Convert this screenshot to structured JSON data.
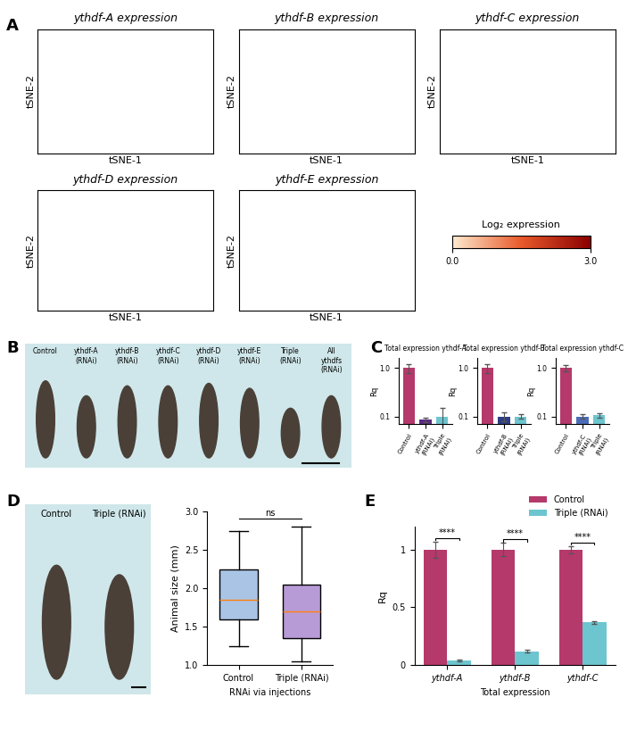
{
  "chart_data": [
    {
      "panel": "A",
      "type": "scatter",
      "title": "ythdf-A expression",
      "x_label": "tSNE-1",
      "y_label": "tSNE-2",
      "tick_labels": false
    },
    {
      "panel": "A",
      "type": "scatter",
      "title": "ythdf-B expression",
      "x_label": "tSNE-1",
      "y_label": "tSNE-2",
      "tick_labels": false
    },
    {
      "panel": "A",
      "type": "scatter",
      "title": "ythdf-C expression",
      "x_label": "tSNE-1",
      "y_label": "tSNE-2",
      "tick_labels": false
    },
    {
      "panel": "A",
      "type": "scatter",
      "title": "ythdf-D expression",
      "x_label": "tSNE-1",
      "y_label": "tSNE-2",
      "tick_labels": false
    },
    {
      "panel": "A",
      "type": "scatter",
      "title": "ythdf-E expression",
      "x_label": "tSNE-1",
      "y_label": "tSNE-2",
      "tick_labels": false
    },
    {
      "panel": "A",
      "type": "colorbar",
      "title": "Log₂ expression",
      "zlim": [
        0.0,
        3.0
      ],
      "zticks": [
        0.0,
        3.0
      ],
      "colors": [
        "#fdebd0",
        "#e8592a",
        "#8b0000"
      ]
    },
    {
      "panel": "B",
      "type": "image",
      "labels": [
        "Control",
        "ythdf-A\n(RNAi)",
        "ythdf-B\n(RNAi)",
        "ythdf-C\n(RNAi)",
        "ythdf-D\n(RNAi)",
        "ythdf-E\n(RNAi)",
        "Triple\n(RNAi)",
        "All\nythdfs\n(RNAi)"
      ]
    },
    {
      "panel": "C",
      "type": "bar",
      "title": "Total expression ythdf-A",
      "y_label": "Rq",
      "categories": [
        "Control",
        "ythdf-A\n(RNAi)",
        "Triple\n(RNAi)"
      ],
      "values": [
        1.0,
        0.085,
        0.1
      ],
      "errors": [
        0.2,
        0.01,
        0.05
      ],
      "colors": [
        "#b5396b",
        "#5b2c83",
        "#6cc5cf"
      ],
      "log": "y",
      "ylim": [
        0.07,
        1.6
      ],
      "yticks": [
        0.1,
        1.0
      ]
    },
    {
      "panel": "C",
      "type": "bar",
      "title": "Total expression ythdf-B",
      "y_label": "Rq",
      "categories": [
        "Control",
        "ythdf-B\n(RNAi)",
        "Triple\n(RNAi)"
      ],
      "values": [
        1.0,
        0.1,
        0.1
      ],
      "errors": [
        0.2,
        0.02,
        0.01
      ],
      "colors": [
        "#b5396b",
        "#2e3f86",
        "#6cc5cf"
      ],
      "log": "y",
      "ylim": [
        0.07,
        1.6
      ],
      "yticks": [
        0.1,
        1.0
      ]
    },
    {
      "panel": "C",
      "type": "bar",
      "title": "Total expression ythdf-C",
      "y_label": "Rq",
      "categories": [
        "Control",
        "ythdf-C\n(RNAi)",
        "Triple\n(RNAi)"
      ],
      "values": [
        1.0,
        0.1,
        0.105
      ],
      "errors": [
        0.15,
        0.01,
        0.01
      ],
      "colors": [
        "#b5396b",
        "#4b6cb7",
        "#6cc5cf"
      ],
      "log": "y",
      "ylim": [
        0.07,
        1.6
      ],
      "yticks": [
        0.1,
        1.0
      ]
    },
    {
      "panel": "D",
      "type": "image",
      "labels": [
        "Control",
        "Triple (RNAi)"
      ]
    },
    {
      "panel": "D",
      "type": "box",
      "y_label": "Animal size (mm)",
      "x_label": "RNAi via injections",
      "categories": [
        "Control",
        "Triple (RNAi)"
      ],
      "boxes": [
        {
          "min": 1.25,
          "q1": 1.6,
          "median": 1.85,
          "q3": 2.25,
          "max": 2.75
        },
        {
          "min": 1.05,
          "q1": 1.35,
          "median": 1.7,
          "q3": 2.05,
          "max": 2.8
        }
      ],
      "colors": [
        "#a9c4e4",
        "#b79bd6"
      ],
      "annotations": [
        "ns"
      ],
      "ylim": [
        1.0,
        3.0
      ],
      "yticks": [
        1.0,
        1.5,
        2.0,
        2.5,
        3.0
      ]
    },
    {
      "panel": "E",
      "type": "bar",
      "x_label": "Total expression",
      "y_label": "Rq",
      "categories": [
        "ythdf-A",
        "ythdf-B",
        "ythdf-C"
      ],
      "series": [
        {
          "name": "Control",
          "color": "#b5396b",
          "values": [
            1.0,
            1.0,
            1.0
          ],
          "errors": [
            0.07,
            0.06,
            0.03
          ]
        },
        {
          "name": "Triple (RNAi)",
          "color": "#6cc5cf",
          "values": [
            0.04,
            0.12,
            0.37
          ],
          "errors": [
            0.005,
            0.01,
            0.01
          ]
        }
      ],
      "annotations": [
        "****",
        "****",
        "****"
      ],
      "ylim": [
        0,
        1.2
      ],
      "yticks": [
        0,
        0.5,
        1
      ],
      "legend": "upper right"
    }
  ]
}
